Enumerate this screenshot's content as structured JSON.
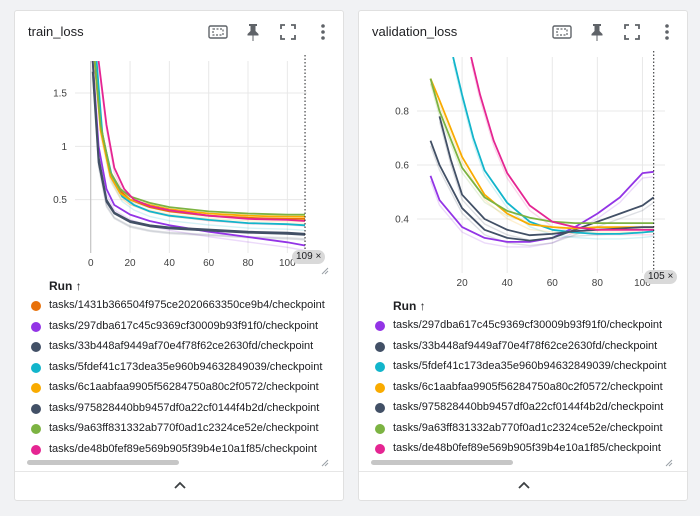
{
  "panels": {
    "left": {
      "title": "train_loss",
      "run_header": "Run ↑",
      "cursor_label": "109 ×",
      "x_ticks": [
        "0",
        "20",
        "40",
        "60",
        "80",
        "100"
      ],
      "y_ticks": [
        "0.5",
        "1",
        "1.5"
      ],
      "runs": [
        {
          "name": "tasks/1431b366504f975ce2020663350ce9b4/checkpoint",
          "color": "#e8710a"
        },
        {
          "name": "tasks/297dba617c45c9369cf30009b93f91f0/checkpoint",
          "color": "#9334e6"
        },
        {
          "name": "tasks/33b448af9449af70e4f78f62ce2630fd/checkpoint",
          "color": "#425066"
        },
        {
          "name": "tasks/5fdef41c173dea35e960b94632849039/checkpoint",
          "color": "#12b5cb"
        },
        {
          "name": "tasks/6c1aabfaa9905f56284750a80c2f0572/checkpoint",
          "color": "#f9ab00"
        },
        {
          "name": "tasks/975828440bb9457df0a22cf0144f4b2d/checkpoint",
          "color": "#425066"
        },
        {
          "name": "tasks/9a63ff831332ab770f0ad1c2324ce52e/checkpoint",
          "color": "#7cb342"
        },
        {
          "name": "tasks/de48b0fef89e569b905f39b4e10a1f85/checkpoint",
          "color": "#e52592"
        }
      ]
    },
    "right": {
      "title": "validation_loss",
      "run_header": "Run ↑",
      "cursor_label": "105 ×",
      "x_ticks": [
        "20",
        "40",
        "60",
        "80",
        "100"
      ],
      "y_ticks": [
        "0.4",
        "0.6",
        "0.8"
      ],
      "runs": [
        {
          "name": "tasks/297dba617c45c9369cf30009b93f91f0/checkpoint",
          "color": "#9334e6"
        },
        {
          "name": "tasks/33b448af9449af70e4f78f62ce2630fd/checkpoint",
          "color": "#425066"
        },
        {
          "name": "tasks/5fdef41c173dea35e960b94632849039/checkpoint",
          "color": "#12b5cb"
        },
        {
          "name": "tasks/6c1aabfaa9905f56284750a80c2f0572/checkpoint",
          "color": "#f9ab00"
        },
        {
          "name": "tasks/975828440bb9457df0a22cf0144f4b2d/checkpoint",
          "color": "#425066"
        },
        {
          "name": "tasks/9a63ff831332ab770f0ad1c2324ce52e/checkpoint",
          "color": "#7cb342"
        },
        {
          "name": "tasks/de48b0fef89e569b905f39b4e10a1f85/checkpoint",
          "color": "#e52592"
        }
      ]
    }
  },
  "chart_data": [
    {
      "type": "line",
      "title": "train_loss",
      "xlim": [
        -8,
        110
      ],
      "ylim": [
        0,
        1.8
      ],
      "x_ticks": [
        0,
        20,
        40,
        60,
        80,
        100
      ],
      "y_ticks": [
        0.5,
        1,
        1.5
      ],
      "cursor_x": 109,
      "series": [
        {
          "name": "tasks/1431b366504f975ce2020663350ce9b4/checkpoint",
          "color": "#e8710a",
          "points": [
            [
              2,
              1.8
            ],
            [
              5,
              1.2
            ],
            [
              10,
              0.75
            ],
            [
              15,
              0.58
            ],
            [
              20,
              0.5
            ],
            [
              30,
              0.43
            ],
            [
              40,
              0.39
            ],
            [
              60,
              0.35
            ],
            [
              80,
              0.33
            ],
            [
              100,
              0.32
            ],
            [
              109,
              0.32
            ]
          ]
        },
        {
          "name": "tasks/297dba617c45c9369cf30009b93f91f0/checkpoint",
          "color": "#9334e6",
          "points": [
            [
              1,
              1.8
            ],
            [
              4,
              1.0
            ],
            [
              8,
              0.6
            ],
            [
              12,
              0.45
            ],
            [
              20,
              0.36
            ],
            [
              30,
              0.3
            ],
            [
              40,
              0.26
            ],
            [
              60,
              0.2
            ],
            [
              80,
              0.15
            ],
            [
              100,
              0.1
            ],
            [
              109,
              0.07
            ]
          ]
        },
        {
          "name": "tasks/33b448af9449af70e4f78f62ce2630fd/checkpoint",
          "color": "#425066",
          "points": [
            [
              1,
              1.8
            ],
            [
              4,
              0.9
            ],
            [
              8,
              0.5
            ],
            [
              12,
              0.38
            ],
            [
              20,
              0.3
            ],
            [
              30,
              0.26
            ],
            [
              40,
              0.24
            ],
            [
              60,
              0.22
            ],
            [
              80,
              0.2
            ],
            [
              100,
              0.19
            ],
            [
              109,
              0.18
            ]
          ]
        },
        {
          "name": "tasks/5fdef41c173dea35e960b94632849039/checkpoint",
          "color": "#12b5cb",
          "points": [
            [
              3,
              1.8
            ],
            [
              6,
              1.1
            ],
            [
              11,
              0.7
            ],
            [
              16,
              0.53
            ],
            [
              22,
              0.45
            ],
            [
              30,
              0.39
            ],
            [
              40,
              0.35
            ],
            [
              60,
              0.31
            ],
            [
              80,
              0.28
            ],
            [
              100,
              0.27
            ],
            [
              109,
              0.26
            ]
          ]
        },
        {
          "name": "tasks/6c1aabfaa9905f56284750a80c2f0572/checkpoint",
          "color": "#f9ab00",
          "points": [
            [
              2,
              1.8
            ],
            [
              5,
              1.15
            ],
            [
              10,
              0.72
            ],
            [
              15,
              0.56
            ],
            [
              20,
              0.5
            ],
            [
              30,
              0.45
            ],
            [
              40,
              0.41
            ],
            [
              60,
              0.37
            ],
            [
              80,
              0.35
            ],
            [
              100,
              0.34
            ],
            [
              109,
              0.34
            ]
          ]
        },
        {
          "name": "tasks/975828440bb9457df0a22cf0144f4b2d/checkpoint",
          "color": "#425066",
          "points": [
            [
              1,
              1.7
            ],
            [
              4,
              0.85
            ],
            [
              8,
              0.48
            ],
            [
              12,
              0.37
            ],
            [
              20,
              0.29
            ],
            [
              30,
              0.25
            ],
            [
              40,
              0.23
            ],
            [
              60,
              0.21
            ],
            [
              80,
              0.19
            ],
            [
              100,
              0.18
            ],
            [
              109,
              0.17
            ]
          ]
        },
        {
          "name": "tasks/9a63ff831332ab770f0ad1c2324ce52e/checkpoint",
          "color": "#7cb342",
          "points": [
            [
              2,
              1.8
            ],
            [
              5,
              1.2
            ],
            [
              10,
              0.76
            ],
            [
              15,
              0.6
            ],
            [
              20,
              0.53
            ],
            [
              30,
              0.47
            ],
            [
              40,
              0.43
            ],
            [
              60,
              0.39
            ],
            [
              80,
              0.37
            ],
            [
              100,
              0.36
            ],
            [
              109,
              0.36
            ]
          ]
        },
        {
          "name": "tasks/de48b0fef89e569b905f39b4e10a1f85/checkpoint",
          "color": "#e52592",
          "points": [
            [
              4,
              1.8
            ],
            [
              8,
              1.2
            ],
            [
              12,
              0.8
            ],
            [
              17,
              0.6
            ],
            [
              22,
              0.5
            ],
            [
              30,
              0.44
            ],
            [
              40,
              0.4
            ],
            [
              60,
              0.35
            ],
            [
              80,
              0.32
            ],
            [
              100,
              0.31
            ],
            [
              109,
              0.3
            ]
          ]
        }
      ]
    },
    {
      "type": "line",
      "title": "validation_loss",
      "xlim": [
        0,
        110
      ],
      "ylim": [
        0.2,
        1.0
      ],
      "x_ticks": [
        20,
        40,
        60,
        80,
        100
      ],
      "y_ticks": [
        0.4,
        0.6,
        0.8
      ],
      "cursor_x": 105,
      "series": [
        {
          "name": "tasks/297dba617c45c9369cf30009b93f91f0/checkpoint",
          "color": "#9334e6",
          "points": [
            [
              6,
              0.56
            ],
            [
              10,
              0.47
            ],
            [
              20,
              0.37
            ],
            [
              30,
              0.33
            ],
            [
              40,
              0.315
            ],
            [
              50,
              0.315
            ],
            [
              60,
              0.33
            ],
            [
              70,
              0.37
            ],
            [
              80,
              0.42
            ],
            [
              90,
              0.48
            ],
            [
              100,
              0.57
            ],
            [
              105,
              0.575
            ]
          ]
        },
        {
          "name": "tasks/33b448af9449af70e4f78f62ce2630fd/checkpoint",
          "color": "#425066",
          "points": [
            [
              6,
              0.69
            ],
            [
              10,
              0.6
            ],
            [
              20,
              0.44
            ],
            [
              30,
              0.36
            ],
            [
              40,
              0.33
            ],
            [
              50,
              0.32
            ],
            [
              60,
              0.33
            ],
            [
              70,
              0.36
            ],
            [
              80,
              0.39
            ],
            [
              90,
              0.42
            ],
            [
              100,
              0.45
            ],
            [
              105,
              0.48
            ]
          ]
        },
        {
          "name": "tasks/5fdef41c173dea35e960b94632849039/checkpoint",
          "color": "#12b5cb",
          "points": [
            [
              16,
              1.0
            ],
            [
              20,
              0.86
            ],
            [
              25,
              0.7
            ],
            [
              30,
              0.58
            ],
            [
              40,
              0.46
            ],
            [
              50,
              0.39
            ],
            [
              60,
              0.36
            ],
            [
              70,
              0.35
            ],
            [
              80,
              0.345
            ],
            [
              90,
              0.345
            ],
            [
              100,
              0.35
            ],
            [
              105,
              0.355
            ]
          ]
        },
        {
          "name": "tasks/6c1aabfaa9905f56284750a80c2f0572/checkpoint",
          "color": "#f9ab00",
          "points": [
            [
              6,
              0.92
            ],
            [
              10,
              0.84
            ],
            [
              20,
              0.63
            ],
            [
              30,
              0.49
            ],
            [
              40,
              0.42
            ],
            [
              50,
              0.38
            ],
            [
              60,
              0.37
            ],
            [
              70,
              0.365
            ],
            [
              80,
              0.37
            ],
            [
              90,
              0.37
            ],
            [
              100,
              0.37
            ],
            [
              105,
              0.37
            ]
          ]
        },
        {
          "name": "tasks/975828440bb9457df0a22cf0144f4b2d/checkpoint",
          "color": "#425066",
          "points": [
            [
              10,
              0.78
            ],
            [
              15,
              0.62
            ],
            [
              20,
              0.49
            ],
            [
              30,
              0.4
            ],
            [
              40,
              0.36
            ],
            [
              50,
              0.34
            ],
            [
              60,
              0.345
            ],
            [
              70,
              0.355
            ],
            [
              80,
              0.36
            ],
            [
              90,
              0.365
            ],
            [
              100,
              0.37
            ],
            [
              105,
              0.37
            ]
          ]
        },
        {
          "name": "tasks/9a63ff831332ab770f0ad1c2324ce52e/checkpoint",
          "color": "#7cb342",
          "points": [
            [
              6,
              0.92
            ],
            [
              10,
              0.8
            ],
            [
              20,
              0.59
            ],
            [
              30,
              0.48
            ],
            [
              40,
              0.43
            ],
            [
              50,
              0.405
            ],
            [
              60,
              0.39
            ],
            [
              70,
              0.385
            ],
            [
              80,
              0.385
            ],
            [
              90,
              0.385
            ],
            [
              100,
              0.385
            ],
            [
              105,
              0.385
            ]
          ]
        },
        {
          "name": "tasks/de48b0fef89e569b905f39b4e10a1f85/checkpoint",
          "color": "#e52592",
          "points": [
            [
              24,
              1.0
            ],
            [
              28,
              0.86
            ],
            [
              34,
              0.69
            ],
            [
              40,
              0.57
            ],
            [
              50,
              0.45
            ],
            [
              60,
              0.39
            ],
            [
              70,
              0.37
            ],
            [
              80,
              0.36
            ],
            [
              90,
              0.36
            ],
            [
              100,
              0.36
            ],
            [
              105,
              0.36
            ]
          ]
        }
      ]
    }
  ]
}
